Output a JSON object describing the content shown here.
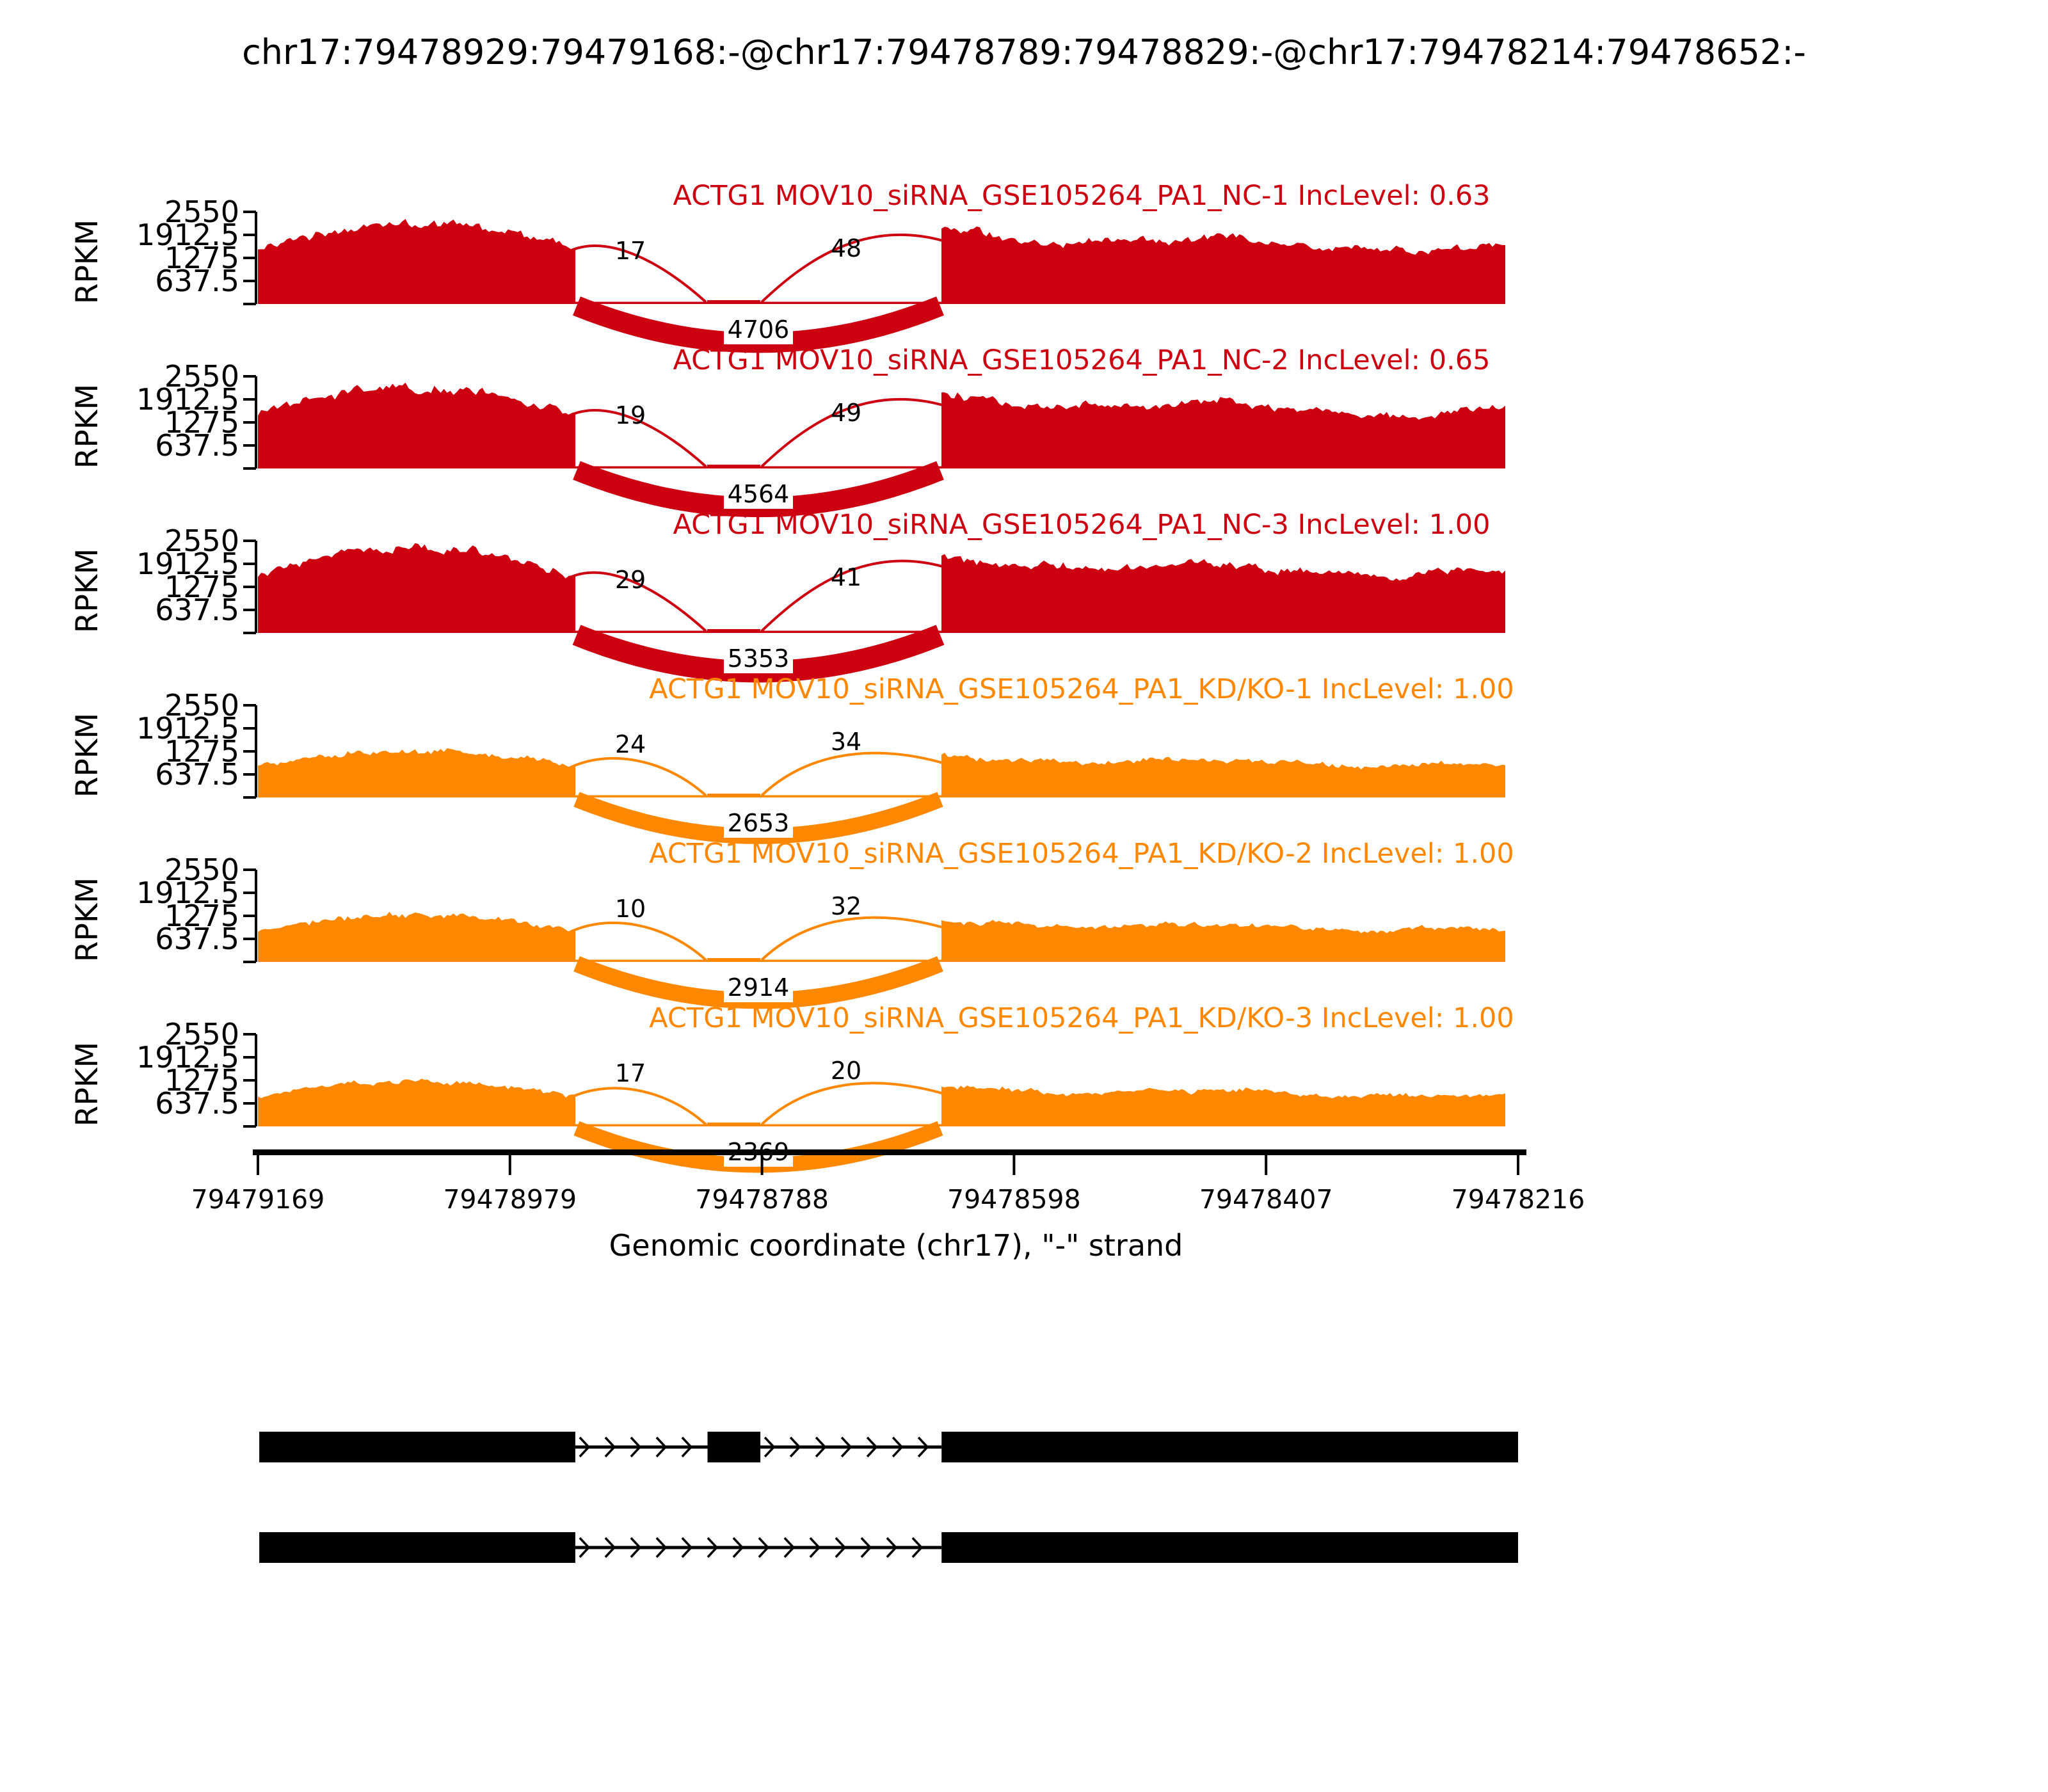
{
  "title": "chr17:79478929:79479168:-@chr17:79478789:79478829:-@chr17:79478214:79478652:-",
  "colors": {
    "nc_red": "#CC0011",
    "kd_orange": "#FF8800",
    "axis_black": "#000000"
  },
  "y_axis": {
    "label": "RPKM",
    "ticks": [
      "2550",
      "1912.5",
      "1275",
      "637.5"
    ]
  },
  "x_axis": {
    "label": "Genomic coordinate (chr17), \"-\" strand",
    "ticks": [
      "79479169",
      "79478979",
      "79478788",
      "79478598",
      "79478407",
      "79478216"
    ]
  },
  "chart_data": {
    "type": "area",
    "subtype": "sashimi-plot",
    "title": "chr17:79478929:79479168:-@chr17:79478789:79478829:-@chr17:79478214:79478652:-",
    "ylabel": "RPKM",
    "xlabel": "Genomic coordinate (chr17), \"-\" strand",
    "y_ticks": [
      2550,
      1912.5,
      1275,
      637.5
    ],
    "x_ticks": [
      79479169,
      79478979,
      79478788,
      79478598,
      79478407,
      79478216
    ],
    "x_axis_direction": "decreasing (minus strand)",
    "strand": "-",
    "event_exons": {
      "upstream": [
        79478929,
        79479168
      ],
      "skipped": [
        79478789,
        79478829
      ],
      "downstream": [
        79478214,
        79478652
      ]
    },
    "series": [
      {
        "label": "ACTG1 MOV10_siRNA_GSE105264_PA1_NC-1",
        "inc_label": "IncLevel: 0.63",
        "inc_level": 0.63,
        "color": "#CC0011",
        "approx_peak_rpkm": 2250,
        "junctions": {
          "upstream_to_skipped": 17,
          "skipped_to_downstream": 48,
          "skipping": 4706
        }
      },
      {
        "label": "ACTG1 MOV10_siRNA_GSE105264_PA1_NC-2",
        "inc_label": "IncLevel: 0.65",
        "inc_level": 0.65,
        "color": "#CC0011",
        "approx_peak_rpkm": 2250,
        "junctions": {
          "upstream_to_skipped": 19,
          "skipped_to_downstream": 49,
          "skipping": 4564
        }
      },
      {
        "label": "ACTG1 MOV10_siRNA_GSE105264_PA1_NC-3",
        "inc_label": "IncLevel: 1.00",
        "inc_level": 1.0,
        "color": "#CC0011",
        "approx_peak_rpkm": 2350,
        "junctions": {
          "upstream_to_skipped": 29,
          "skipped_to_downstream": 41,
          "skipping": 5353
        }
      },
      {
        "label": "ACTG1 MOV10_siRNA_GSE105264_PA1_KD/KO-1",
        "inc_label": "IncLevel: 1.00",
        "inc_level": 1.0,
        "color": "#FF8800",
        "approx_peak_rpkm": 1300,
        "junctions": {
          "upstream_to_skipped": 24,
          "skipped_to_downstream": 34,
          "skipping": 2653
        }
      },
      {
        "label": "ACTG1 MOV10_siRNA_GSE105264_PA1_KD/KO-2",
        "inc_label": "IncLevel: 1.00",
        "inc_level": 1.0,
        "color": "#FF8800",
        "approx_peak_rpkm": 1300,
        "junctions": {
          "upstream_to_skipped": 10,
          "skipped_to_downstream": 32,
          "skipping": 2914
        }
      },
      {
        "label": "ACTG1 MOV10_siRNA_GSE105264_PA1_KD/KO-3",
        "inc_label": "IncLevel: 1.00",
        "inc_level": 1.0,
        "color": "#FF8800",
        "approx_peak_rpkm": 1250,
        "junctions": {
          "upstream_to_skipped": 17,
          "skipped_to_downstream": 20,
          "skipping": 2369
        }
      }
    ],
    "gene_model": [
      {
        "name": "isoform-inclusion",
        "exons": [
          [
            79478929,
            79479168
          ],
          [
            79478789,
            79478829
          ],
          [
            79478214,
            79478652
          ]
        ]
      },
      {
        "name": "isoform-skipping",
        "exons": [
          [
            79478929,
            79479168
          ],
          [
            79478214,
            79478652
          ]
        ]
      }
    ]
  }
}
